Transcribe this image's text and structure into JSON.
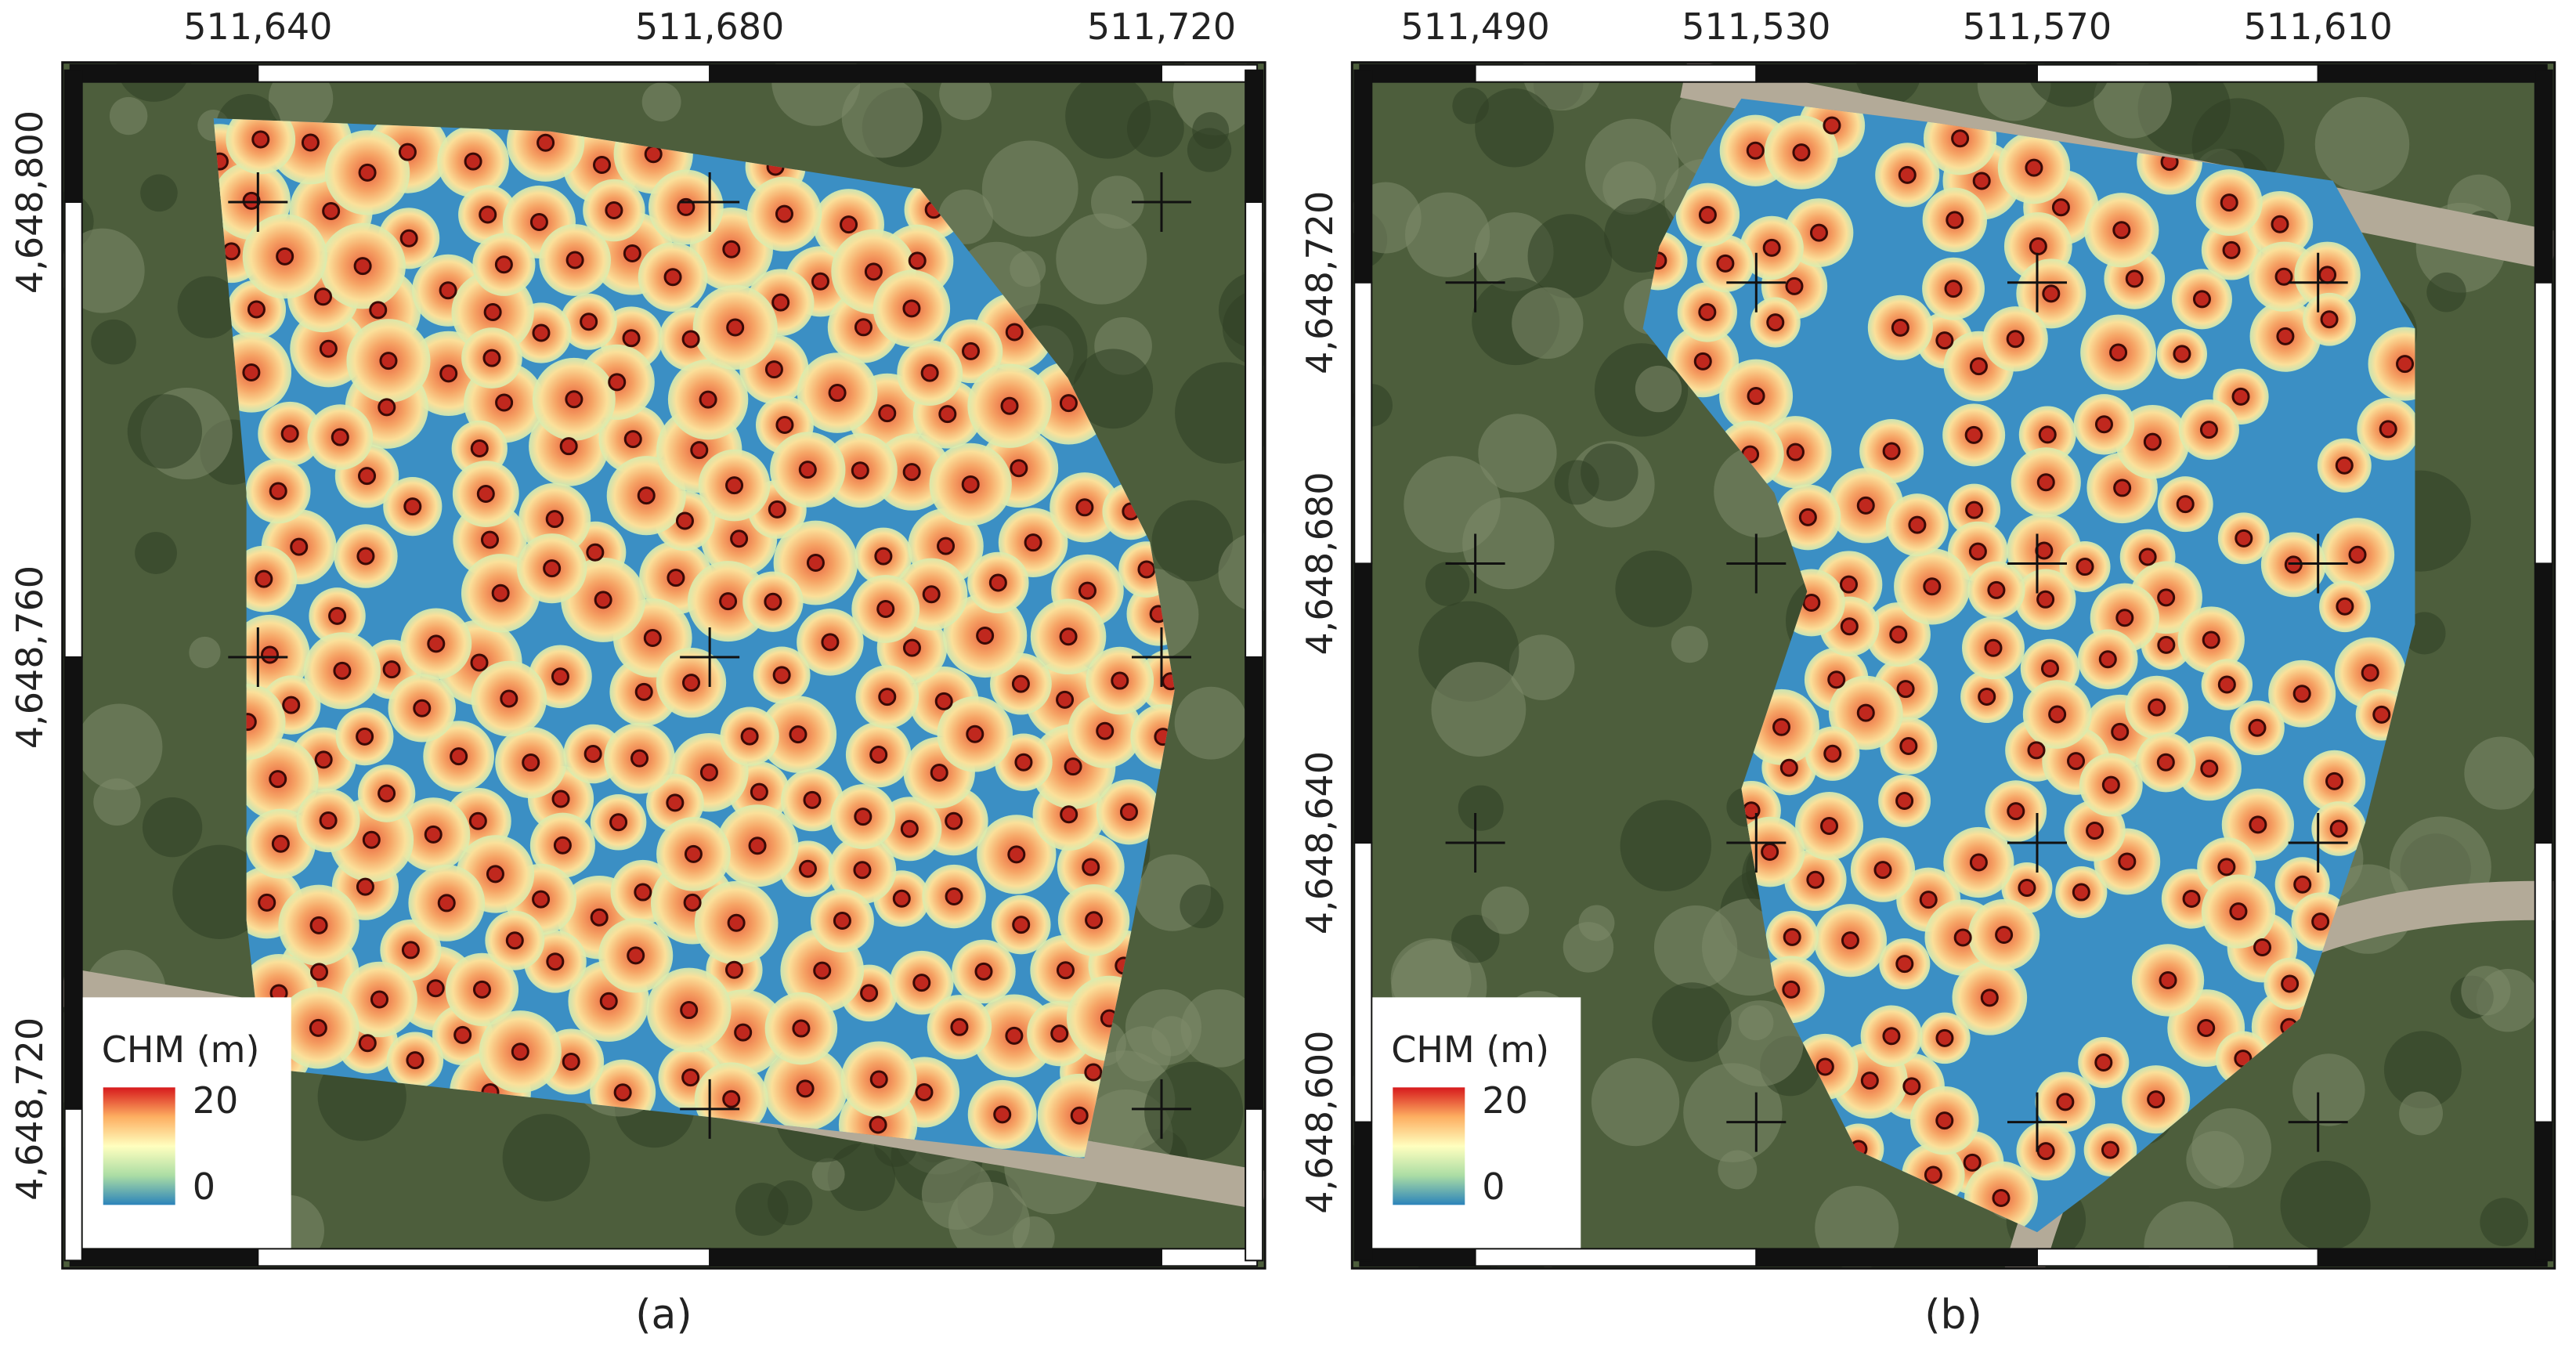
{
  "panels": [
    {
      "x_labels": [
        "511,640",
        "511,680",
        "511,720"
      ],
      "y_labels": [
        "4,648,800",
        "4,648,760",
        "4,648,720"
      ],
      "legend": {
        "title": "CHM (m)",
        "max_label": "20",
        "min_label": "0"
      },
      "caption": "(a)"
    },
    {
      "x_labels": [
        "511,490",
        "511,530",
        "511,570",
        "511,610"
      ],
      "y_labels": [
        "4,648,720",
        "4,648,680",
        "4,648,640",
        "4,648,600"
      ],
      "legend": {
        "title": "CHM (m)",
        "max_label": "20",
        "min_label": "0"
      },
      "caption": "(b)"
    }
  ]
}
